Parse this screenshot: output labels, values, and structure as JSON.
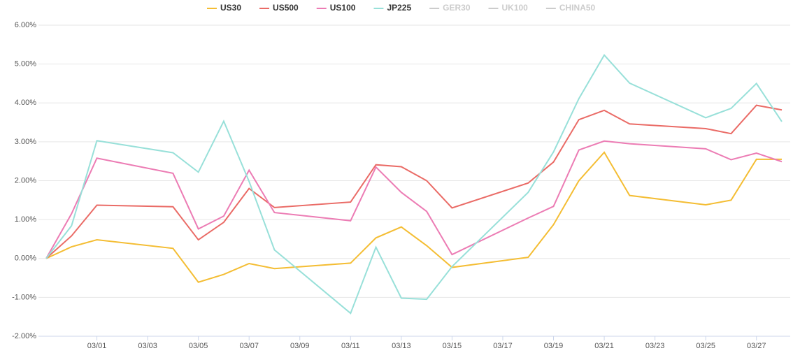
{
  "chart_data": {
    "type": "line",
    "x": [
      "02/28",
      "02/29",
      "03/01",
      "03/04",
      "03/05",
      "03/06",
      "03/07",
      "03/08",
      "03/11",
      "03/12",
      "03/13",
      "03/14",
      "03/15",
      "03/18",
      "03/19",
      "03/20",
      "03/21",
      "03/22",
      "03/25",
      "03/26",
      "03/27",
      "03/28"
    ],
    "xlim": [
      "02/28",
      "03/28"
    ],
    "xticks": [
      "03/01",
      "03/03",
      "03/05",
      "03/07",
      "03/09",
      "03/11",
      "03/13",
      "03/15",
      "03/17",
      "03/19",
      "03/21",
      "03/23",
      "03/25",
      "03/27"
    ],
    "ylim": [
      -2,
      6
    ],
    "yticks": [
      {
        "value": -2,
        "label": "-2.00%"
      },
      {
        "value": -1,
        "label": "-1.00%"
      },
      {
        "value": 0,
        "label": "0.00%"
      },
      {
        "value": 1,
        "label": "1.00%"
      },
      {
        "value": 2,
        "label": "2.00%"
      },
      {
        "value": 3,
        "label": "3.00%"
      },
      {
        "value": 4,
        "label": "4.00%"
      },
      {
        "value": 5,
        "label": "5.00%"
      },
      {
        "value": 6,
        "label": "6.00%"
      }
    ],
    "grid": true,
    "legend": "top",
    "series": [
      {
        "name": "US30",
        "color": "#f4bd33",
        "values": [
          0,
          0.3,
          0.48,
          0.26,
          -0.61,
          -0.41,
          -0.13,
          -0.26,
          -0.12,
          0.53,
          0.81,
          0.33,
          -0.23,
          0.03,
          0.87,
          2.0,
          2.73,
          1.62,
          1.38,
          1.5,
          2.55,
          2.55
        ]
      },
      {
        "name": "US500",
        "color": "#ea6b66",
        "values": [
          0,
          0.58,
          1.37,
          1.33,
          0.48,
          0.93,
          1.8,
          1.31,
          1.45,
          2.41,
          2.36,
          2.0,
          1.3,
          1.94,
          2.48,
          3.57,
          3.81,
          3.46,
          3.34,
          3.21,
          3.94,
          3.82
        ]
      },
      {
        "name": "US100",
        "color": "#ec7cb4",
        "values": [
          0,
          1.15,
          2.58,
          2.19,
          0.76,
          1.09,
          2.27,
          1.18,
          0.97,
          2.35,
          1.7,
          1.21,
          0.1,
          1.04,
          1.34,
          2.79,
          3.02,
          2.95,
          2.82,
          2.54,
          2.71,
          2.49
        ]
      },
      {
        "name": "JP225",
        "color": "#98e0d9",
        "values": [
          0,
          0.84,
          3.03,
          2.72,
          2.22,
          3.53,
          1.98,
          0.22,
          -1.41,
          0.29,
          -1.02,
          -1.05,
          -0.21,
          1.7,
          2.74,
          4.11,
          5.23,
          4.51,
          3.62,
          3.86,
          4.5,
          3.52
        ]
      },
      {
        "name": "GER30",
        "color": "#cccccc",
        "visible": false
      },
      {
        "name": "UK100",
        "color": "#cccccc",
        "visible": false
      },
      {
        "name": "CHINA50",
        "color": "#cccccc",
        "visible": false
      }
    ]
  }
}
